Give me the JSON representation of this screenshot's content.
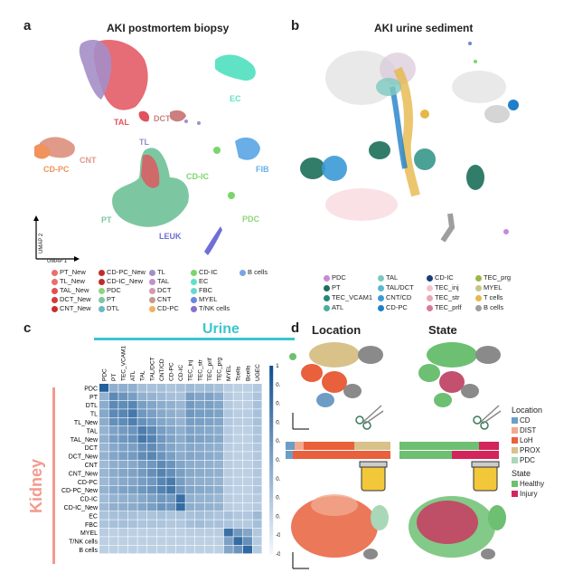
{
  "panel_a": {
    "label": "a",
    "title": "AKI postmortem biopsy",
    "umap_x": "UMAP 1",
    "umap_y": "UMAP 2",
    "cluster_labels": [
      {
        "text": "TAL",
        "color": "#e2525d"
      },
      {
        "text": "DCT",
        "color": "#cc7f7f"
      },
      {
        "text": "EC",
        "color": "#5fe3c4"
      },
      {
        "text": "TL",
        "color": "#9e85c9"
      },
      {
        "text": "CNT",
        "color": "#e09a8a"
      },
      {
        "text": "CD-PC",
        "color": "#f0935c"
      },
      {
        "text": "FIB",
        "color": "#6aaee8"
      },
      {
        "text": "CD-IC",
        "color": "#7ad66a"
      },
      {
        "text": "PT",
        "color": "#7cc7a1"
      },
      {
        "text": "PDC",
        "color": "#8fd47c"
      },
      {
        "text": "LEUK",
        "color": "#6f6fd8"
      }
    ],
    "legend": [
      {
        "text": "PT_New",
        "color": "#e86f6f"
      },
      {
        "text": "TL_New",
        "color": "#e86f6f"
      },
      {
        "text": "TAL_New",
        "color": "#e0524f"
      },
      {
        "text": "DCT_New",
        "color": "#d23b3b"
      },
      {
        "text": "CNT_New",
        "color": "#c92f2f"
      },
      {
        "text": "CD-PC_New",
        "color": "#c42c2c"
      },
      {
        "text": "CD-IC_New",
        "color": "#c02a2a"
      },
      {
        "text": "PDC",
        "color": "#8fd47c"
      },
      {
        "text": "PT",
        "color": "#7cc7a1"
      },
      {
        "text": "DTL",
        "color": "#6fb6c6"
      },
      {
        "text": "TL",
        "color": "#a58ec8"
      },
      {
        "text": "TAL",
        "color": "#c392c6"
      },
      {
        "text": "DCT",
        "color": "#d39ab0"
      },
      {
        "text": "CNT",
        "color": "#c79a8a"
      },
      {
        "text": "CD-PC",
        "color": "#f2b15e"
      },
      {
        "text": "CD-IC",
        "color": "#7ad66a"
      },
      {
        "text": "EC",
        "color": "#5fe3c4"
      },
      {
        "text": "FBC",
        "color": "#6ad7d0"
      },
      {
        "text": "MYEL",
        "color": "#6a86e0"
      },
      {
        "text": "T/NK cells",
        "color": "#8a6fd0"
      },
      {
        "text": "B cells",
        "color": "#7aa6e0"
      }
    ]
  },
  "panel_b": {
    "label": "b",
    "title": "AKI urine sediment",
    "legend": [
      {
        "text": "PDC",
        "color": "#c78ad8"
      },
      {
        "text": "PT",
        "color": "#1c6e5a"
      },
      {
        "text": "TEC_VCAM1",
        "color": "#1e8a7a"
      },
      {
        "text": "ATL",
        "color": "#4ab09a"
      },
      {
        "text": "TAL",
        "color": "#7dc9c0"
      },
      {
        "text": "TAL/DCT",
        "color": "#58b8cc"
      },
      {
        "text": "CNT/CD",
        "color": "#3b9ad6"
      },
      {
        "text": "CD-PC",
        "color": "#1f7fc9"
      },
      {
        "text": "CD-IC",
        "color": "#163f7a"
      },
      {
        "text": "TEC_inj",
        "color": "#f3c4cc"
      },
      {
        "text": "TEC_str",
        "color": "#e8a6b6"
      },
      {
        "text": "TEC_prlf",
        "color": "#d87a9a"
      },
      {
        "text": "TEC_prg",
        "color": "#9ab84a"
      },
      {
        "text": "MYEL",
        "color": "#c6c48a"
      },
      {
        "text": "T cells",
        "color": "#e6b84a"
      },
      {
        "text": "B cells",
        "color": "#9e9e9e"
      }
    ]
  },
  "panel_c": {
    "label": "c",
    "col_title": "Urine",
    "row_title": "Kidney",
    "legend_ticks": [
      "1",
      "0.88",
      "0.76",
      "0.64",
      "0.52",
      "0.4",
      "0.28",
      "0.16",
      "0.04",
      "-0.08",
      "-0.2"
    ],
    "chart_data": {
      "type": "heatmap",
      "columns": [
        "PDC",
        "PT",
        "TEC_VCAM1",
        "ATL",
        "TAL",
        "TAL/DCT",
        "CNT/CD",
        "CD-PC",
        "CD-IC",
        "TEC_inj",
        "TEC_str",
        "TEC_prlf",
        "TEC_prg",
        "MYEL",
        "Tcells",
        "Bcells",
        "UGEC"
      ],
      "rows": [
        "PDC",
        "PT",
        "DTL",
        "TL",
        "TL_New",
        "TAL",
        "TAL_New",
        "DCT",
        "DCT_New",
        "CNT",
        "CNT_New",
        "CD-PC",
        "CD-PC_New",
        "CD-IC",
        "CD-IC_New",
        "EC",
        "FBC",
        "MYEL",
        "T/NK cells",
        "B cells"
      ],
      "value_range": [
        -0.2,
        1
      ],
      "values": [
        [
          0.89,
          0.32,
          0.33,
          0.32,
          0.22,
          0.2,
          0.22,
          0.18,
          0.2,
          0.25,
          0.22,
          0.24,
          0.2,
          0.12,
          0.1,
          0.1,
          0.15
        ],
        [
          0.3,
          0.6,
          0.52,
          0.45,
          0.32,
          0.3,
          0.26,
          0.22,
          0.2,
          0.45,
          0.4,
          0.42,
          0.36,
          0.14,
          0.1,
          0.1,
          0.18
        ],
        [
          0.35,
          0.6,
          0.58,
          0.62,
          0.45,
          0.4,
          0.35,
          0.32,
          0.28,
          0.48,
          0.42,
          0.44,
          0.4,
          0.14,
          0.1,
          0.1,
          0.2
        ],
        [
          0.38,
          0.6,
          0.62,
          0.72,
          0.5,
          0.44,
          0.38,
          0.34,
          0.3,
          0.5,
          0.46,
          0.45,
          0.42,
          0.16,
          0.12,
          0.12,
          0.2
        ],
        [
          0.35,
          0.55,
          0.58,
          0.66,
          0.55,
          0.48,
          0.4,
          0.36,
          0.3,
          0.46,
          0.44,
          0.42,
          0.4,
          0.15,
          0.12,
          0.12,
          0.2
        ],
        [
          0.3,
          0.42,
          0.48,
          0.52,
          0.68,
          0.6,
          0.46,
          0.4,
          0.34,
          0.42,
          0.4,
          0.38,
          0.36,
          0.14,
          0.1,
          0.1,
          0.18
        ],
        [
          0.32,
          0.45,
          0.5,
          0.54,
          0.72,
          0.64,
          0.5,
          0.42,
          0.36,
          0.44,
          0.42,
          0.4,
          0.38,
          0.14,
          0.1,
          0.1,
          0.18
        ],
        [
          0.28,
          0.38,
          0.42,
          0.44,
          0.55,
          0.58,
          0.48,
          0.4,
          0.34,
          0.38,
          0.36,
          0.34,
          0.32,
          0.12,
          0.1,
          0.1,
          0.16
        ],
        [
          0.3,
          0.4,
          0.44,
          0.48,
          0.58,
          0.62,
          0.52,
          0.44,
          0.36,
          0.4,
          0.38,
          0.36,
          0.34,
          0.12,
          0.1,
          0.1,
          0.16
        ],
        [
          0.25,
          0.34,
          0.36,
          0.38,
          0.45,
          0.5,
          0.6,
          0.52,
          0.4,
          0.35,
          0.34,
          0.32,
          0.3,
          0.12,
          0.1,
          0.1,
          0.15
        ],
        [
          0.28,
          0.36,
          0.4,
          0.42,
          0.48,
          0.55,
          0.64,
          0.56,
          0.44,
          0.38,
          0.36,
          0.34,
          0.32,
          0.12,
          0.1,
          0.1,
          0.16
        ],
        [
          0.26,
          0.34,
          0.38,
          0.4,
          0.46,
          0.5,
          0.62,
          0.7,
          0.46,
          0.36,
          0.34,
          0.33,
          0.3,
          0.12,
          0.1,
          0.1,
          0.15
        ],
        [
          0.3,
          0.38,
          0.42,
          0.44,
          0.5,
          0.55,
          0.64,
          0.72,
          0.5,
          0.4,
          0.38,
          0.36,
          0.34,
          0.12,
          0.1,
          0.1,
          0.16
        ],
        [
          0.24,
          0.3,
          0.32,
          0.34,
          0.38,
          0.42,
          0.5,
          0.48,
          0.78,
          0.32,
          0.3,
          0.3,
          0.28,
          0.12,
          0.1,
          0.1,
          0.14
        ],
        [
          0.26,
          0.32,
          0.34,
          0.36,
          0.4,
          0.44,
          0.52,
          0.5,
          0.8,
          0.34,
          0.32,
          0.31,
          0.3,
          0.12,
          0.1,
          0.1,
          0.14
        ],
        [
          0.18,
          0.2,
          0.22,
          0.2,
          0.18,
          0.18,
          0.2,
          0.18,
          0.18,
          0.2,
          0.22,
          0.2,
          0.18,
          0.2,
          0.16,
          0.16,
          0.26
        ],
        [
          0.18,
          0.2,
          0.22,
          0.2,
          0.18,
          0.18,
          0.18,
          0.16,
          0.16,
          0.22,
          0.24,
          0.2,
          0.2,
          0.18,
          0.14,
          0.14,
          0.22
        ],
        [
          0.12,
          0.1,
          0.12,
          0.1,
          0.1,
          0.1,
          0.1,
          0.1,
          0.1,
          0.12,
          0.12,
          0.12,
          0.12,
          0.78,
          0.5,
          0.4,
          0.16
        ],
        [
          0.1,
          0.1,
          0.1,
          0.1,
          0.1,
          0.1,
          0.1,
          0.1,
          0.1,
          0.1,
          0.1,
          0.1,
          0.1,
          0.42,
          0.8,
          0.55,
          0.14
        ],
        [
          0.1,
          0.1,
          0.1,
          0.1,
          0.1,
          0.1,
          0.1,
          0.1,
          0.1,
          0.1,
          0.1,
          0.1,
          0.1,
          0.4,
          0.52,
          0.82,
          0.14
        ]
      ]
    }
  },
  "panel_d": {
    "label": "d",
    "title_location": "Location",
    "title_state": "State",
    "location_legend_title": "Location",
    "location_legend": [
      {
        "text": "CD",
        "color": "#6d9dc5"
      },
      {
        "text": "DIST",
        "color": "#f3a98f"
      },
      {
        "text": "LoH",
        "color": "#e8603c"
      },
      {
        "text": "PROX",
        "color": "#d8c28a"
      },
      {
        "text": "PDC",
        "color": "#a8d8b8"
      }
    ],
    "state_legend_title": "State",
    "state_legend": [
      {
        "text": "Healthy",
        "color": "#6dbf72"
      },
      {
        "text": "Injury",
        "color": "#d3245c"
      }
    ],
    "umap_x": "UMAP 1",
    "umap_y": "UMAP 2"
  }
}
